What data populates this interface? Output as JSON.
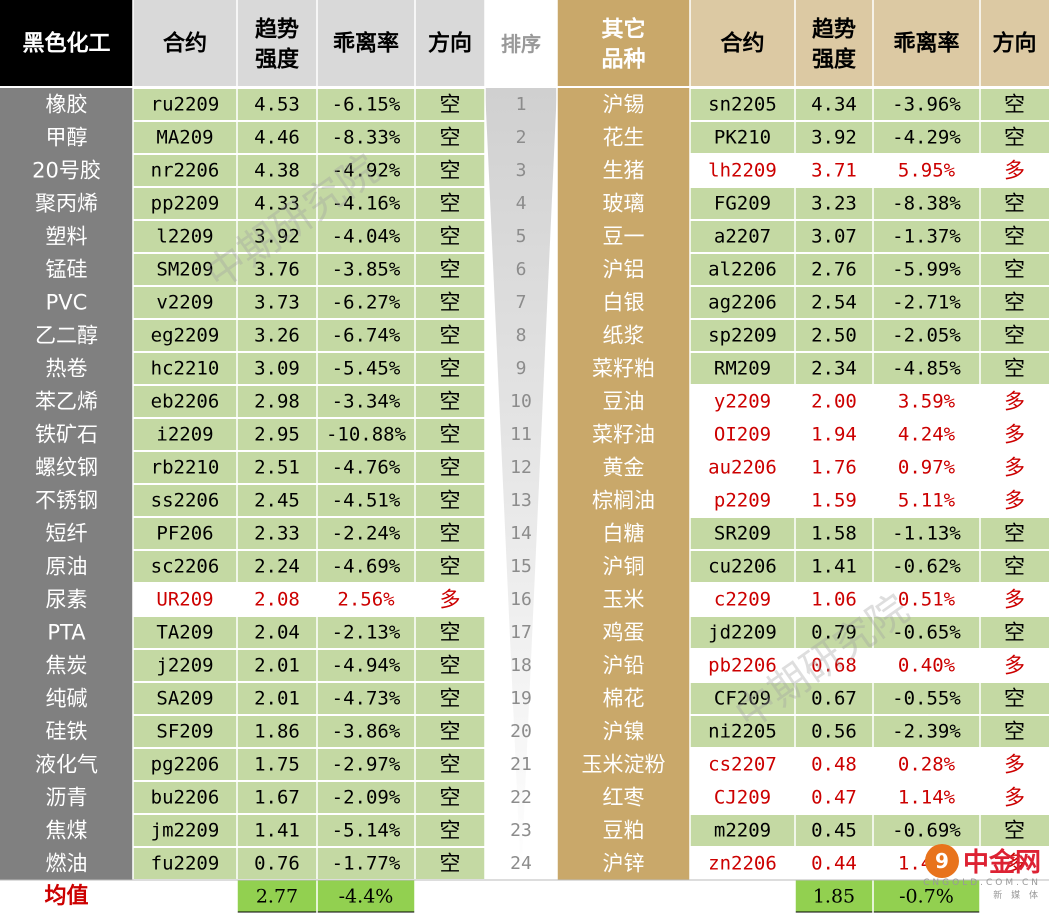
{
  "left": {
    "header": {
      "category": "黑色化工",
      "contract": "合约",
      "trend": "趋势 强度",
      "deviation": "乖离率",
      "direction": "方向"
    },
    "rows": [
      {
        "name": "橡胶",
        "contract": "ru2209",
        "trend": "4.53",
        "dev": "-6.15%",
        "dir": "空",
        "rank": "1"
      },
      {
        "name": "甲醇",
        "contract": "MA209",
        "trend": "4.46",
        "dev": "-8.33%",
        "dir": "空",
        "rank": "2"
      },
      {
        "name": "20号胶",
        "contract": "nr2206",
        "trend": "4.38",
        "dev": "-4.92%",
        "dir": "空",
        "rank": "3"
      },
      {
        "name": "聚丙烯",
        "contract": "pp2209",
        "trend": "4.33",
        "dev": "-4.16%",
        "dir": "空",
        "rank": "4"
      },
      {
        "name": "塑料",
        "contract": "l2209",
        "trend": "3.92",
        "dev": "-4.04%",
        "dir": "空",
        "rank": "5"
      },
      {
        "name": "锰硅",
        "contract": "SM209",
        "trend": "3.76",
        "dev": "-3.85%",
        "dir": "空",
        "rank": "6"
      },
      {
        "name": "PVC",
        "contract": "v2209",
        "trend": "3.73",
        "dev": "-6.27%",
        "dir": "空",
        "rank": "7"
      },
      {
        "name": "乙二醇",
        "contract": "eg2209",
        "trend": "3.26",
        "dev": "-6.74%",
        "dir": "空",
        "rank": "8"
      },
      {
        "name": "热卷",
        "contract": "hc2210",
        "trend": "3.09",
        "dev": "-5.45%",
        "dir": "空",
        "rank": "9"
      },
      {
        "name": "苯乙烯",
        "contract": "eb2206",
        "trend": "2.98",
        "dev": "-3.34%",
        "dir": "空",
        "rank": "10"
      },
      {
        "name": "铁矿石",
        "contract": "i2209",
        "trend": "2.95",
        "dev": "-10.88%",
        "dir": "空",
        "rank": "11"
      },
      {
        "name": "螺纹钢",
        "contract": "rb2210",
        "trend": "2.51",
        "dev": "-4.76%",
        "dir": "空",
        "rank": "12"
      },
      {
        "name": "不锈钢",
        "contract": "ss2206",
        "trend": "2.45",
        "dev": "-4.51%",
        "dir": "空",
        "rank": "13"
      },
      {
        "name": "短纤",
        "contract": "PF206",
        "trend": "2.33",
        "dev": "-2.24%",
        "dir": "空",
        "rank": "14"
      },
      {
        "name": "原油",
        "contract": "sc2206",
        "trend": "2.24",
        "dev": "-4.69%",
        "dir": "空",
        "rank": "15"
      },
      {
        "name": "尿素",
        "contract": "UR209",
        "trend": "2.08",
        "dev": "2.56%",
        "dir": "多",
        "rank": "16"
      },
      {
        "name": "PTA",
        "contract": "TA209",
        "trend": "2.04",
        "dev": "-2.13%",
        "dir": "空",
        "rank": "17"
      },
      {
        "name": "焦炭",
        "contract": "j2209",
        "trend": "2.01",
        "dev": "-4.94%",
        "dir": "空",
        "rank": "18"
      },
      {
        "name": "纯碱",
        "contract": "SA209",
        "trend": "2.01",
        "dev": "-4.73%",
        "dir": "空",
        "rank": "19"
      },
      {
        "name": "硅铁",
        "contract": "SF209",
        "trend": "1.86",
        "dev": "-3.86%",
        "dir": "空",
        "rank": "20"
      },
      {
        "name": "液化气",
        "contract": "pg2206",
        "trend": "1.75",
        "dev": "-2.97%",
        "dir": "空",
        "rank": "21"
      },
      {
        "name": "沥青",
        "contract": "bu2206",
        "trend": "1.67",
        "dev": "-2.09%",
        "dir": "空",
        "rank": "22"
      },
      {
        "name": "焦煤",
        "contract": "jm2209",
        "trend": "1.41",
        "dev": "-5.14%",
        "dir": "空",
        "rank": "23"
      },
      {
        "name": "燃油",
        "contract": "fu2209",
        "trend": "0.76",
        "dev": "-1.77%",
        "dir": "空",
        "rank": "24"
      }
    ],
    "avg": {
      "label": "均值",
      "trend": "2.77",
      "dev": "-4.4%"
    }
  },
  "rank_header": "排序",
  "right": {
    "header": {
      "category": "其它 品种",
      "contract": "合约",
      "trend": "趋势 强度",
      "deviation": "乖离率",
      "direction": "方向"
    },
    "rows": [
      {
        "name": "沪锡",
        "contract": "sn2205",
        "trend": "4.34",
        "dev": "-3.96%",
        "dir": "空"
      },
      {
        "name": "花生",
        "contract": "PK210",
        "trend": "3.92",
        "dev": "-4.29%",
        "dir": "空"
      },
      {
        "name": "生猪",
        "contract": "lh2209",
        "trend": "3.71",
        "dev": "5.95%",
        "dir": "多"
      },
      {
        "name": "玻璃",
        "contract": "FG209",
        "trend": "3.23",
        "dev": "-8.38%",
        "dir": "空"
      },
      {
        "name": "豆一",
        "contract": "a2207",
        "trend": "3.07",
        "dev": "-1.37%",
        "dir": "空"
      },
      {
        "name": "沪铝",
        "contract": "al2206",
        "trend": "2.76",
        "dev": "-5.99%",
        "dir": "空"
      },
      {
        "name": "白银",
        "contract": "ag2206",
        "trend": "2.54",
        "dev": "-2.71%",
        "dir": "空"
      },
      {
        "name": "纸浆",
        "contract": "sp2209",
        "trend": "2.50",
        "dev": "-2.05%",
        "dir": "空"
      },
      {
        "name": "菜籽粕",
        "contract": "RM209",
        "trend": "2.34",
        "dev": "-4.85%",
        "dir": "空"
      },
      {
        "name": "豆油",
        "contract": "y2209",
        "trend": "2.00",
        "dev": "3.59%",
        "dir": "多"
      },
      {
        "name": "菜籽油",
        "contract": "OI209",
        "trend": "1.94",
        "dev": "4.24%",
        "dir": "多"
      },
      {
        "name": "黄金",
        "contract": "au2206",
        "trend": "1.76",
        "dev": "0.97%",
        "dir": "多"
      },
      {
        "name": "棕榈油",
        "contract": "p2209",
        "trend": "1.59",
        "dev": "5.11%",
        "dir": "多"
      },
      {
        "name": "白糖",
        "contract": "SR209",
        "trend": "1.58",
        "dev": "-1.13%",
        "dir": "空"
      },
      {
        "name": "沪铜",
        "contract": "cu2206",
        "trend": "1.41",
        "dev": "-0.62%",
        "dir": "空"
      },
      {
        "name": "玉米",
        "contract": "c2209",
        "trend": "1.06",
        "dev": "0.51%",
        "dir": "多"
      },
      {
        "name": "鸡蛋",
        "contract": "jd2209",
        "trend": "0.79",
        "dev": "-0.65%",
        "dir": "空"
      },
      {
        "name": "沪铅",
        "contract": "pb2206",
        "trend": "0.68",
        "dev": "0.40%",
        "dir": "多"
      },
      {
        "name": "棉花",
        "contract": "CF209",
        "trend": "0.67",
        "dev": "-0.55%",
        "dir": "空"
      },
      {
        "name": "沪镍",
        "contract": "ni2205",
        "trend": "0.56",
        "dev": "-2.39%",
        "dir": "空"
      },
      {
        "name": "玉米淀粉",
        "contract": "cs2207",
        "trend": "0.48",
        "dev": "0.28%",
        "dir": "多"
      },
      {
        "name": "红枣",
        "contract": "CJ209",
        "trend": "0.47",
        "dev": "1.14%",
        "dir": "多"
      },
      {
        "name": "豆粕",
        "contract": "m2209",
        "trend": "0.45",
        "dev": "-0.69%",
        "dir": "空"
      },
      {
        "name": "沪锌",
        "contract": "zn2206",
        "trend": "0.44",
        "dev": "1.41%",
        "dir": "多"
      }
    ],
    "avg": {
      "trend": "1.85",
      "dev": "-0.7%"
    }
  },
  "watermark": "中期研究院",
  "logo": {
    "mark": "9",
    "text": "中金网",
    "sub": "新 媒 体",
    "url": "CNGOLD.COM.CN"
  },
  "colors": {
    "green": "#c4d9a3",
    "gray": "#808080",
    "gold": "#c9a86a",
    "tan": "#dcc9a3",
    "red": "#cc0000",
    "avg_green": "#92d050",
    "black": "#000000"
  }
}
